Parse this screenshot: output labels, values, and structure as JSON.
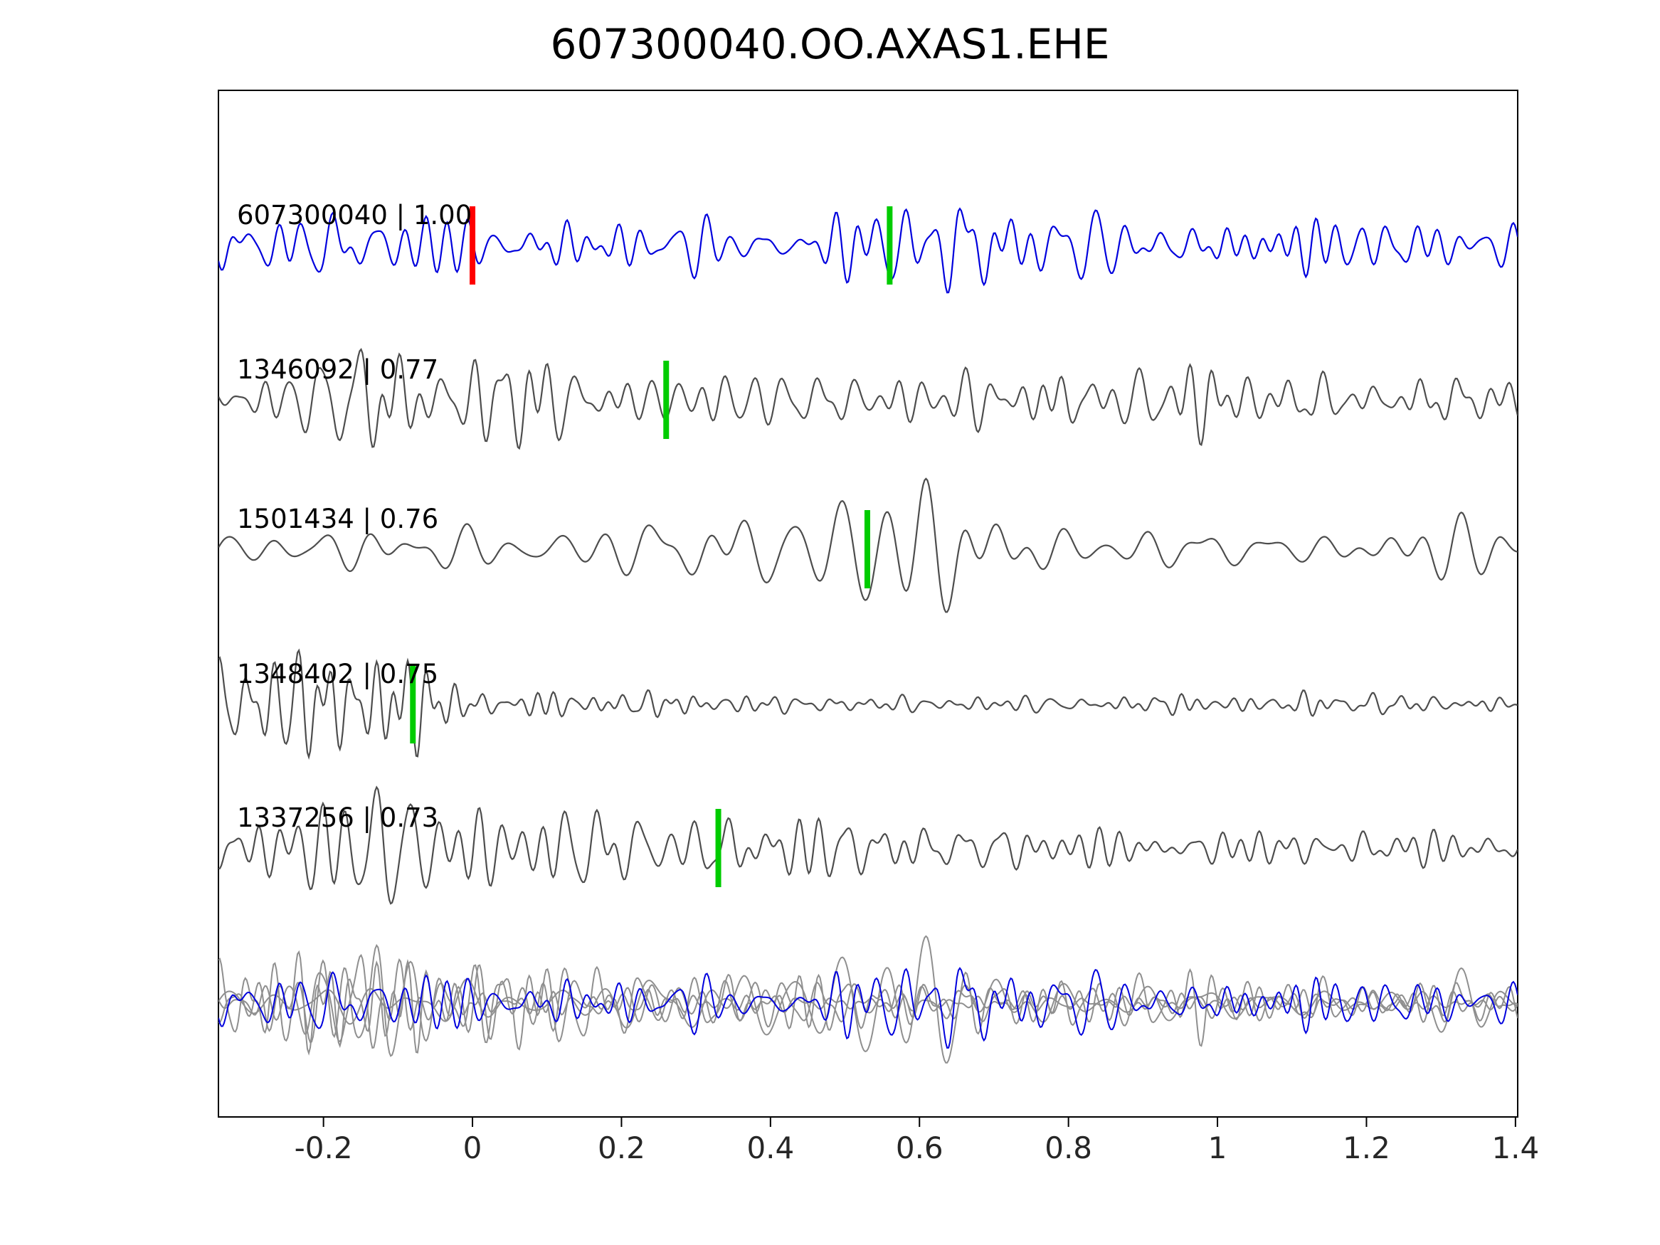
{
  "title": "607300040.OO.AXAS1.EHE",
  "chart_data": {
    "type": "line",
    "title": "607300040.OO.AXAS1.EHE",
    "xlabel": "",
    "ylabel": "",
    "xlim": [
      -0.341,
      1.403
    ],
    "xticks": [
      -0.2,
      0,
      0.2,
      0.4,
      0.6,
      0.8,
      1,
      1.2,
      1.4
    ],
    "xtick_labels": [
      "-0.2",
      "0",
      "0.2",
      "0.4",
      "0.6",
      "0.8",
      "1",
      "1.2",
      "1.4"
    ],
    "grid": false,
    "legend": "none",
    "colors": {
      "template_trace": "#0000dd",
      "detection_trace": "#4d4d4d",
      "overlay_gray": "#8f8f8f",
      "pick_green": "#00cc00",
      "pick_red": "#ff0000",
      "axis": "#000000"
    },
    "traces": [
      {
        "id": "607300040",
        "label": "607300040 | 1.00",
        "correlation": 1.0,
        "color": "#0000dd",
        "is_template": true,
        "picks": [
          {
            "x": 0.0,
            "color": "#ff0000"
          },
          {
            "x": 0.56,
            "color": "#00cc00"
          }
        ],
        "render": {
          "seed": 17,
          "fmin": 14,
          "fmax": 44,
          "amp": 60,
          "envelope": [
            [
              -0.341,
              0.75
            ],
            [
              0.45,
              0.8
            ],
            [
              0.55,
              1.0
            ],
            [
              0.62,
              1.5
            ],
            [
              0.72,
              1.0
            ],
            [
              1.403,
              0.8
            ]
          ]
        }
      },
      {
        "id": "1346092",
        "label": "1346092 | 0.77",
        "correlation": 0.77,
        "color": "#4d4d4d",
        "is_template": false,
        "picks": [
          {
            "x": 0.26,
            "color": "#00cc00"
          }
        ],
        "render": {
          "seed": 42,
          "fmin": 16,
          "fmax": 46,
          "amp": 58,
          "envelope": [
            [
              -0.341,
              0.8
            ],
            [
              -0.15,
              1.5
            ],
            [
              0.1,
              1.6
            ],
            [
              0.3,
              1.0
            ],
            [
              0.6,
              0.85
            ],
            [
              0.95,
              1.1
            ],
            [
              1.403,
              0.95
            ]
          ]
        }
      },
      {
        "id": "1501434",
        "label": "1501434 | 0.76",
        "correlation": 0.76,
        "color": "#4d4d4d",
        "is_template": false,
        "picks": [
          {
            "x": 0.53,
            "color": "#00cc00"
          }
        ],
        "render": {
          "seed": 77,
          "fmin": 8,
          "fmax": 24,
          "amp": 70,
          "envelope": [
            [
              -0.341,
              0.6
            ],
            [
              0.2,
              0.75
            ],
            [
              0.5,
              1.3
            ],
            [
              0.62,
              1.5
            ],
            [
              0.8,
              1.0
            ],
            [
              1.403,
              0.7
            ]
          ]
        }
      },
      {
        "id": "1348402",
        "label": "1348402 | 0.75",
        "correlation": 0.75,
        "color": "#4d4d4d",
        "is_template": false,
        "picks": [
          {
            "x": -0.08,
            "color": "#00cc00"
          }
        ],
        "render": {
          "seed": 5,
          "fmin": 20,
          "fmax": 55,
          "amp": 58,
          "envelope": [
            [
              -0.341,
              1.9
            ],
            [
              -0.2,
              2.2
            ],
            [
              -0.08,
              1.3
            ],
            [
              0.05,
              0.55
            ],
            [
              0.4,
              0.35
            ],
            [
              1.403,
              0.35
            ]
          ]
        }
      },
      {
        "id": "1337256",
        "label": "1337256 | 0.73",
        "correlation": 0.73,
        "color": "#4d4d4d",
        "is_template": false,
        "picks": [
          {
            "x": 0.33,
            "color": "#00cc00"
          }
        ],
        "render": {
          "seed": 91,
          "fmin": 16,
          "fmax": 44,
          "amp": 58,
          "envelope": [
            [
              -0.341,
              0.8
            ],
            [
              -0.18,
              1.7
            ],
            [
              0.1,
              1.6
            ],
            [
              0.35,
              1.2
            ],
            [
              0.6,
              0.7
            ],
            [
              1.0,
              0.45
            ],
            [
              1.403,
              0.5
            ]
          ]
        }
      }
    ],
    "overlay": {
      "description": "all detection traces in gray overlaid with template trace in blue",
      "gray_color": "#8f8f8f",
      "blue_color": "#0000dd",
      "amp_scale": 0.95
    }
  }
}
